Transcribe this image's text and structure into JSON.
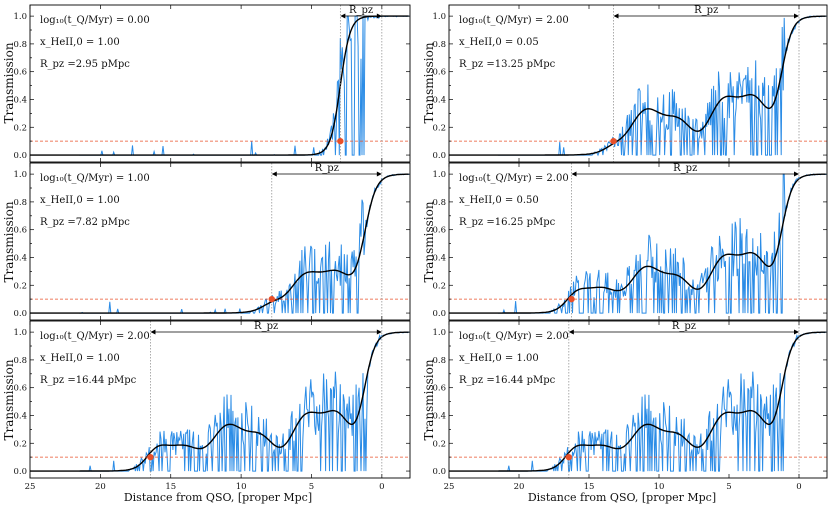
{
  "figure": {
    "ylabel": "Transmission",
    "xlabel": "Distance from QSO, [proper Mpc]",
    "colors": {
      "spectrum": "#2b8ce6",
      "smooth": "#000000",
      "threshold": "#e8502a",
      "marker": "#e8502a",
      "guide": "#888888"
    }
  },
  "chart_data": [
    {
      "id": "left-top",
      "type": "line",
      "annotations": [
        "log₁₀(t_Q/Myr) = 0.00",
        "x_HeII,0 = 1.00",
        "R_pz =2.95 pMpc"
      ],
      "rpz_label": "R_pz",
      "rpz": 2.95,
      "tq_log": 0.0,
      "x_heii": 1.0,
      "noise_density": 0.9,
      "seed": 11,
      "xlim": [
        25,
        -2
      ],
      "ylim": [
        -0.05,
        1.08
      ],
      "threshold": 0.1,
      "xticks": [],
      "yticks": [
        0.0,
        0.2,
        0.4,
        0.6,
        0.8,
        1.0
      ],
      "ytick_labels": [
        "0.0",
        "0.2",
        "0.4",
        "0.6",
        "0.8",
        "1.0"
      ]
    },
    {
      "id": "right-top",
      "type": "line",
      "annotations": [
        "log₁₀(t_Q/Myr) = 2.00",
        "x_HeII,0 = 0.05",
        "R_pz =13.25 pMpc"
      ],
      "rpz_label": "R_pz",
      "rpz": 13.25,
      "tq_log": 2.0,
      "x_heii": 0.05,
      "noise_density": 0.8,
      "seed": 23,
      "xlim": [
        25,
        -2
      ],
      "ylim": [
        -0.05,
        1.08
      ],
      "threshold": 0.1,
      "xticks": [],
      "yticks": [
        0.0,
        0.2,
        0.4,
        0.6,
        0.8,
        1.0
      ],
      "ytick_labels": [
        "0.0",
        "0.2",
        "0.4",
        "0.6",
        "0.8",
        "1.0"
      ]
    },
    {
      "id": "left-mid",
      "type": "line",
      "annotations": [
        "log₁₀(t_Q/Myr) = 1.00",
        "x_HeII,0 = 1.00",
        "R_pz =7.82 pMpc"
      ],
      "rpz_label": "R_pz",
      "rpz": 7.82,
      "tq_log": 1.0,
      "x_heii": 1.0,
      "noise_density": 0.9,
      "seed": 37,
      "xlim": [
        25,
        -2
      ],
      "ylim": [
        -0.05,
        1.08
      ],
      "threshold": 0.1,
      "xticks": [],
      "yticks": [
        0.0,
        0.2,
        0.4,
        0.6,
        0.8,
        1.0
      ],
      "ytick_labels": [
        "0.0",
        "0.2",
        "0.4",
        "0.6",
        "0.8",
        "1.0"
      ]
    },
    {
      "id": "right-mid",
      "type": "line",
      "annotations": [
        "log₁₀(t_Q/Myr) = 2.00",
        "x_HeII,0 = 0.50",
        "R_pz =16.25 pMpc"
      ],
      "rpz_label": "R_pz",
      "rpz": 16.25,
      "tq_log": 2.0,
      "x_heii": 0.5,
      "noise_density": 0.85,
      "seed": 41,
      "xlim": [
        25,
        -2
      ],
      "ylim": [
        -0.05,
        1.08
      ],
      "threshold": 0.1,
      "xticks": [],
      "yticks": [
        0.0,
        0.2,
        0.4,
        0.6,
        0.8,
        1.0
      ],
      "ytick_labels": [
        "0.0",
        "0.2",
        "0.4",
        "0.6",
        "0.8",
        "1.0"
      ]
    },
    {
      "id": "left-bottom",
      "type": "line",
      "annotations": [
        "log₁₀(t_Q/Myr) = 2.00",
        "x_HeII,0 = 1.00",
        "R_pz =16.44 pMpc"
      ],
      "rpz_label": "R_pz",
      "rpz": 16.44,
      "tq_log": 2.0,
      "x_heii": 1.0,
      "noise_density": 0.9,
      "seed": 53,
      "xlim": [
        25,
        -2
      ],
      "ylim": [
        -0.05,
        1.08
      ],
      "threshold": 0.1,
      "xticks": [
        25,
        20,
        15,
        10,
        5,
        0
      ],
      "xtick_labels": [
        "25",
        "20",
        "15",
        "10",
        "5",
        "0"
      ],
      "yticks": [
        0.0,
        0.2,
        0.4,
        0.6,
        0.8,
        1.0
      ],
      "ytick_labels": [
        "0.0",
        "0.2",
        "0.4",
        "0.6",
        "0.8",
        "1.0"
      ]
    },
    {
      "id": "right-bottom",
      "type": "line",
      "annotations": [
        "log₁₀(t_Q/Myr) = 2.00",
        "x_HeII,0 = 1.00",
        "R_pz =16.44 pMpc"
      ],
      "rpz_label": "R_pz",
      "rpz": 16.44,
      "tq_log": 2.0,
      "x_heii": 1.0,
      "noise_density": 0.9,
      "seed": 53,
      "xlim": [
        25,
        -2
      ],
      "ylim": [
        -0.05,
        1.08
      ],
      "threshold": 0.1,
      "xticks": [
        25,
        20,
        15,
        10,
        5,
        0
      ],
      "xtick_labels": [
        "25",
        "20",
        "15",
        "10",
        "5",
        "0"
      ],
      "yticks": [
        0.0,
        0.2,
        0.4,
        0.6,
        0.8,
        1.0
      ],
      "ytick_labels": [
        "0.0",
        "0.2",
        "0.4",
        "0.6",
        "0.8",
        "1.0"
      ]
    }
  ]
}
